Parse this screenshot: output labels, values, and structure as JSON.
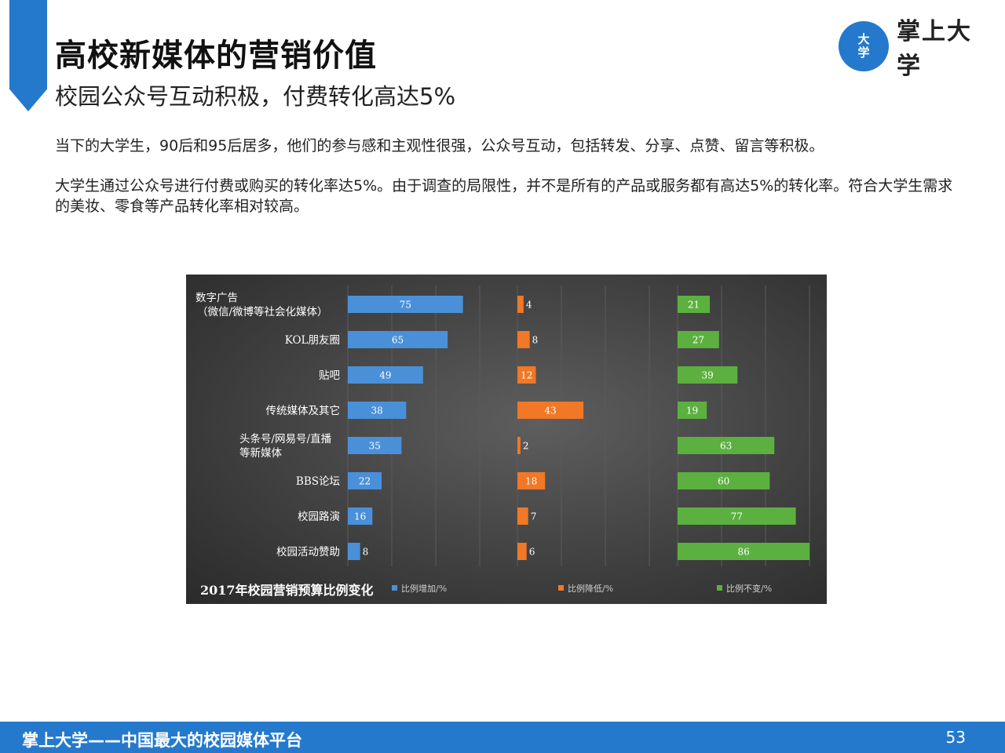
{
  "slide": {
    "title": "高校新媒体的营销价值",
    "subtitle": "校园公众号互动积极，付费转化高达5%",
    "paragraphs": [
      "当下的大学生，90后和95后居多，他们的参与感和主观性很强，公众号互动，包括转发、分享、点赞、留言等积极。",
      "大学生通过公众号进行付费或购买的转化率达5%。由于调查的局限性，并不是所有的产品或服务都有高达5%的转化率。符合大学生需求的美妆、零食等产品转化率相对较高。"
    ]
  },
  "logo": {
    "circle_top": "大",
    "circle_bottom": "学",
    "text": "掌上大学"
  },
  "footer": {
    "text": "掌上大学——中国最大的校园媒体平台",
    "page_number": "53"
  },
  "colors": {
    "accent": "#2479cc",
    "increase": "#4a90d9",
    "decrease": "#f07826",
    "unchanged": "#5cb040"
  },
  "chart_data": {
    "type": "bar",
    "orientation": "horizontal",
    "title": "2017年校园营销预算比例变化",
    "categories": [
      [
        "数字广告",
        "（微信/微博等社会化媒体）"
      ],
      [
        "KOL朋友圈"
      ],
      [
        "贴吧"
      ],
      [
        "传统媒体及其它"
      ],
      [
        "头条号/网易号/直播",
        "等新媒体"
      ],
      [
        "BBS论坛"
      ],
      [
        "校园路演"
      ],
      [
        "校园活动赞助"
      ]
    ],
    "series": [
      {
        "name": "比例增加/%",
        "color": "#4a90d9",
        "values": [
          75,
          65,
          49,
          38,
          35,
          22,
          16,
          8
        ]
      },
      {
        "name": "比例降低/%",
        "color": "#f07826",
        "values": [
          4,
          8,
          12,
          43,
          2,
          18,
          7,
          6
        ]
      },
      {
        "name": "比例不变/%",
        "color": "#5cb040",
        "values": [
          21,
          27,
          39,
          19,
          63,
          60,
          77,
          86
        ]
      }
    ],
    "xlim": [
      0,
      100
    ],
    "grid": true,
    "legend": "bottom"
  }
}
